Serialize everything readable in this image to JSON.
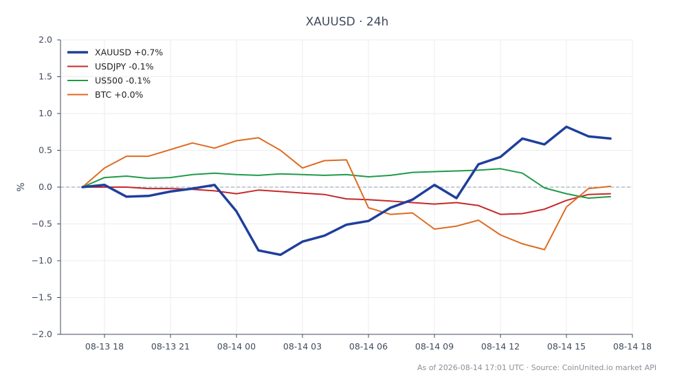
{
  "chart_data": {
    "type": "line",
    "title": "XAUUSD · 24h",
    "ylabel": "%",
    "xlabel": "",
    "ylim": [
      -2.0,
      2.0
    ],
    "yticks": [
      2.0,
      1.5,
      1.0,
      0.5,
      0.0,
      -0.5,
      -1.0,
      -1.5,
      -2.0
    ],
    "ytick_labels": [
      "2.0",
      "1.5",
      "1.0",
      "0.5",
      "0.0",
      "−0.5",
      "−1.0",
      "−1.5",
      "−2.0"
    ],
    "xlim": [
      "2026-08-13 16:00",
      "2026-08-14 18:00"
    ],
    "xticks": [
      "2026-08-13 18:00",
      "2026-08-13 21:00",
      "2026-08-14 00:00",
      "2026-08-14 03:00",
      "2026-08-14 06:00",
      "2026-08-14 09:00",
      "2026-08-14 12:00",
      "2026-08-14 15:00",
      "2026-08-14 18:00"
    ],
    "xtick_labels": [
      "08-13 18",
      "08-13 21",
      "08-14 00",
      "08-14 03",
      "08-14 06",
      "08-14 09",
      "08-14 12",
      "08-14 15",
      "08-14 18"
    ],
    "grid": true,
    "zero_line": true,
    "legend_position": "top-left",
    "x": [
      "2026-08-13 17:00",
      "2026-08-13 18:00",
      "2026-08-13 19:00",
      "2026-08-13 20:00",
      "2026-08-13 21:00",
      "2026-08-13 22:00",
      "2026-08-13 23:00",
      "2026-08-14 00:00",
      "2026-08-14 01:00",
      "2026-08-14 02:00",
      "2026-08-14 03:00",
      "2026-08-14 04:00",
      "2026-08-14 05:00",
      "2026-08-14 06:00",
      "2026-08-14 07:00",
      "2026-08-14 08:00",
      "2026-08-14 09:00",
      "2026-08-14 10:00",
      "2026-08-14 11:00",
      "2026-08-14 12:00",
      "2026-08-14 13:00",
      "2026-08-14 14:00",
      "2026-08-14 15:00",
      "2026-08-14 16:00",
      "2026-08-14 17:00"
    ],
    "series": [
      {
        "name": "XAUUSD +0.7%",
        "color": "#1f3f9c",
        "width": 3.5,
        "values": [
          0.0,
          0.03,
          -0.13,
          -0.12,
          -0.06,
          -0.02,
          0.03,
          -0.33,
          -0.86,
          -0.92,
          -0.74,
          -0.66,
          -0.51,
          -0.46,
          -0.28,
          -0.17,
          0.03,
          -0.15,
          0.31,
          0.41,
          0.66,
          0.58,
          0.82,
          0.69,
          0.66
        ]
      },
      {
        "name": "USDJPY -0.1%",
        "color": "#c62828",
        "width": 2,
        "values": [
          0.0,
          0.0,
          0.0,
          -0.02,
          -0.02,
          -0.03,
          -0.05,
          -0.09,
          -0.04,
          -0.06,
          -0.08,
          -0.1,
          -0.16,
          -0.17,
          -0.19,
          -0.21,
          -0.23,
          -0.21,
          -0.25,
          -0.37,
          -0.36,
          -0.3,
          -0.18,
          -0.1,
          -0.09
        ]
      },
      {
        "name": "US500 -0.1%",
        "color": "#1e9a48",
        "width": 2,
        "values": [
          0.0,
          0.13,
          0.15,
          0.12,
          0.13,
          0.17,
          0.19,
          0.17,
          0.16,
          0.18,
          0.17,
          0.16,
          0.17,
          0.14,
          0.16,
          0.2,
          0.21,
          0.22,
          0.23,
          0.25,
          0.19,
          -0.01,
          -0.09,
          -0.15,
          -0.13
        ]
      },
      {
        "name": "BTC +0.0%",
        "color": "#de6a1f",
        "width": 2,
        "values": [
          0.0,
          0.26,
          0.42,
          0.42,
          0.51,
          0.6,
          0.53,
          0.63,
          0.67,
          0.5,
          0.26,
          0.36,
          0.37,
          -0.28,
          -0.37,
          -0.35,
          -0.57,
          -0.53,
          -0.45,
          -0.65,
          -0.77,
          -0.85,
          -0.27,
          -0.02,
          0.01
        ]
      }
    ]
  },
  "footer": "As of 2026-08-14 17:01 UTC · Source: CoinUnited.io market API"
}
